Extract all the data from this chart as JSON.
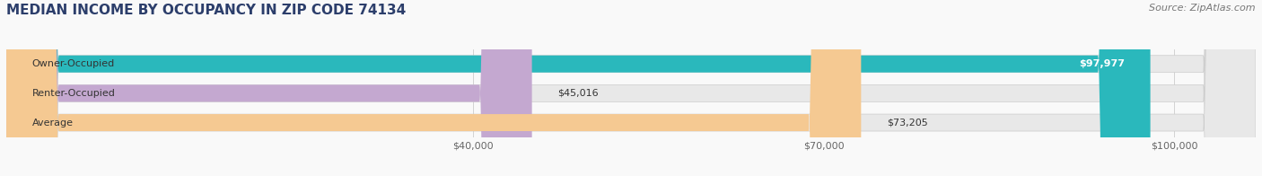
{
  "title": "MEDIAN INCOME BY OCCUPANCY IN ZIP CODE 74134",
  "source": "Source: ZipAtlas.com",
  "categories": [
    "Owner-Occupied",
    "Renter-Occupied",
    "Average"
  ],
  "values": [
    97977,
    45016,
    73205
  ],
  "bar_colors": [
    "#2ab8bc",
    "#c4a8d0",
    "#f5c992"
  ],
  "bar_bg_color": "#e8e8e8",
  "labels": [
    "$97,977",
    "$45,016",
    "$73,205"
  ],
  "tick_labels": [
    "$40,000",
    "$70,000",
    "$100,000"
  ],
  "tick_values": [
    40000,
    70000,
    100000
  ],
  "xmin": 0,
  "xmax": 107000,
  "title_color": "#2c3e6b",
  "source_color": "#777777",
  "bar_label_color": "#333333",
  "cat_label_color": "#333333",
  "background_color": "#f9f9f9",
  "bar_height": 0.58,
  "title_fontsize": 11,
  "source_fontsize": 8,
  "tick_fontsize": 8,
  "bar_label_fontsize": 8,
  "cat_label_fontsize": 8
}
